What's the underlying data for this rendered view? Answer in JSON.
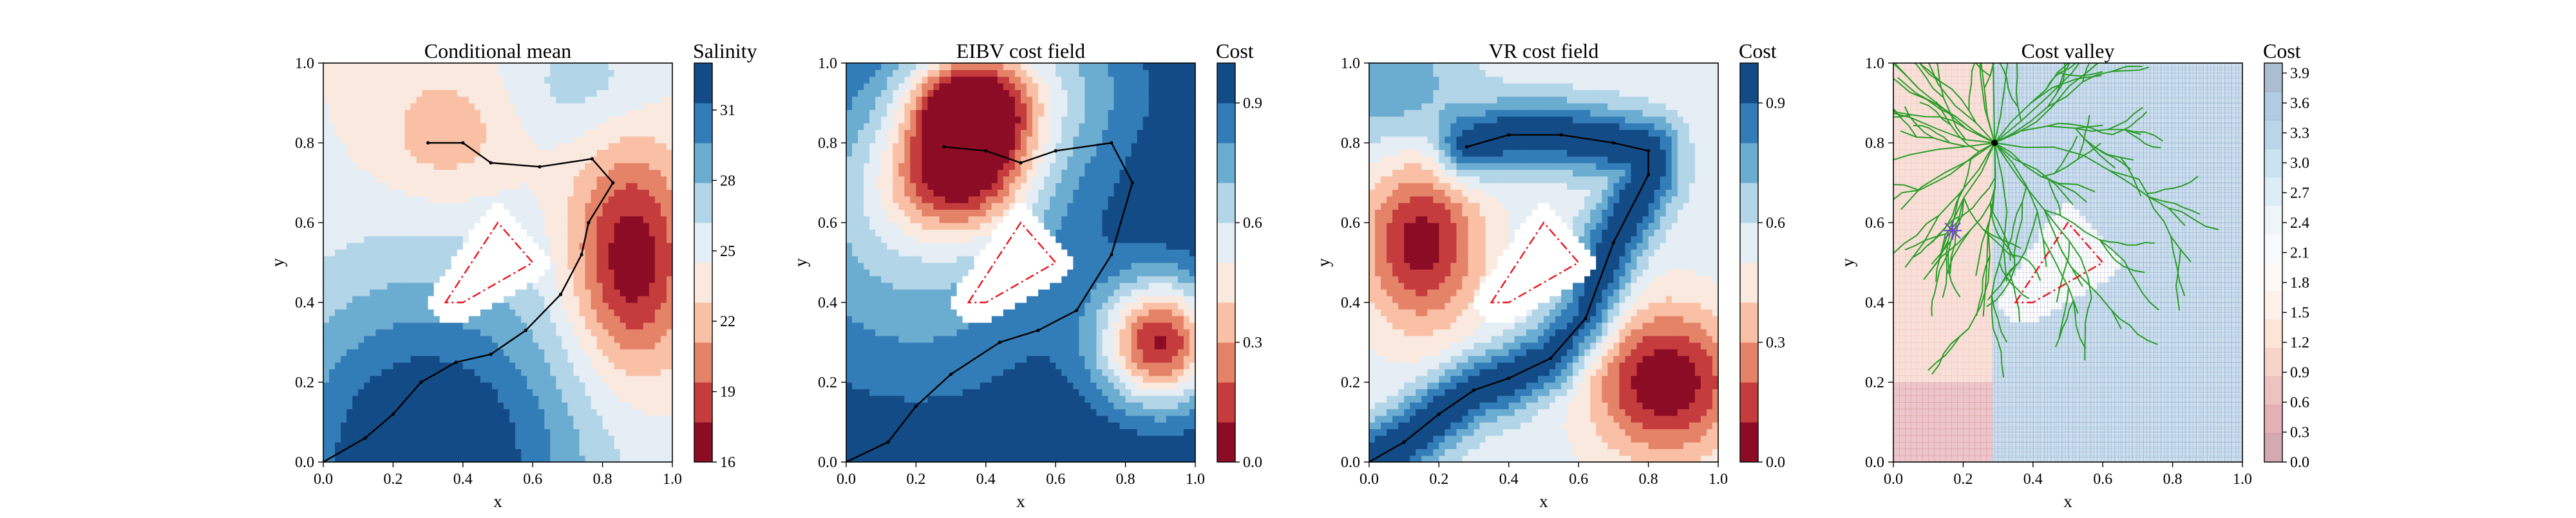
{
  "figure": {
    "background": "#ffffff"
  },
  "chart_data": [
    {
      "type": "heatmap",
      "title": "Conditional mean",
      "xlabel": "x",
      "ylabel": "y",
      "xlim": [
        0.0,
        1.0
      ],
      "ylim": [
        0.0,
        1.0
      ],
      "x_ticks": [
        "0.0",
        "0.2",
        "0.4",
        "0.6",
        "0.8",
        "1.0"
      ],
      "y_ticks": [
        "0.0",
        "0.2",
        "0.4",
        "0.6",
        "0.8",
        "1.0"
      ],
      "colormap": "RdBu",
      "colorbar": {
        "label": "Salinity",
        "range": [
          16,
          33
        ],
        "levels": 10,
        "ticks": [
          "16",
          "19",
          "22",
          "25",
          "28",
          "31"
        ],
        "tick_values": [
          16,
          19,
          22,
          25,
          28,
          31
        ]
      },
      "field": {
        "base": 24.5,
        "gradient": [
          {
            "x": 0.3,
            "y": 0.0,
            "amp": 9.5,
            "sigma": 0.32
          }
        ],
        "blobs": [
          {
            "x": 0.88,
            "y": 0.5,
            "amp": -8.5,
            "sx": 0.12,
            "sy": 0.2
          },
          {
            "x": 0.35,
            "y": 0.82,
            "amp": -3.0,
            "sx": 0.14,
            "sy": 0.12
          },
          {
            "x": 0.75,
            "y": 0.95,
            "amp": 2.5,
            "sx": 0.15,
            "sy": 0.1
          }
        ]
      },
      "obstacle": [
        [
          0.35,
          0.4
        ],
        [
          0.5,
          0.6
        ],
        [
          0.6,
          0.5
        ],
        [
          0.4,
          0.4
        ]
      ],
      "path": [
        [
          0.0,
          0.0
        ],
        [
          0.12,
          0.06
        ],
        [
          0.2,
          0.12
        ],
        [
          0.28,
          0.2
        ],
        [
          0.38,
          0.25
        ],
        [
          0.48,
          0.27
        ],
        [
          0.58,
          0.33
        ],
        [
          0.68,
          0.42
        ],
        [
          0.74,
          0.52
        ],
        [
          0.76,
          0.6
        ],
        [
          0.83,
          0.7
        ],
        [
          0.77,
          0.76
        ],
        [
          0.62,
          0.74
        ],
        [
          0.48,
          0.75
        ],
        [
          0.4,
          0.8
        ],
        [
          0.3,
          0.8
        ]
      ]
    },
    {
      "type": "heatmap",
      "title": "EIBV cost field",
      "xlabel": "x",
      "ylabel": "y",
      "xlim": [
        0.0,
        1.0
      ],
      "ylim": [
        0.0,
        1.0
      ],
      "x_ticks": [
        "0.0",
        "0.2",
        "0.4",
        "0.6",
        "0.8",
        "1.0"
      ],
      "y_ticks": [
        "0.0",
        "0.2",
        "0.4",
        "0.6",
        "0.8",
        "1.0"
      ],
      "colormap": "RdBu",
      "colorbar": {
        "label": "Cost",
        "range": [
          0.0,
          1.0
        ],
        "levels": 10,
        "ticks": [
          "0.0",
          "0.3",
          "0.6",
          "0.9"
        ],
        "tick_values": [
          0.0,
          0.3,
          0.6,
          0.9
        ]
      },
      "field": {
        "base": 1.0,
        "blobs": [
          {
            "x": 0.35,
            "y": 0.88,
            "amp": -0.9,
            "sx": 0.12,
            "sy": 0.1
          },
          {
            "x": 0.32,
            "y": 0.7,
            "amp": -0.55,
            "sx": 0.15,
            "sy": 0.1
          },
          {
            "x": 0.9,
            "y": 0.3,
            "amp": -0.9,
            "sx": 0.12,
            "sy": 0.11
          },
          {
            "x": 0.2,
            "y": 0.6,
            "amp": -0.35,
            "sx": 0.3,
            "sy": 0.28
          },
          {
            "x": 0.55,
            "y": 0.95,
            "amp": -0.3,
            "sx": 0.2,
            "sy": 0.15
          }
        ]
      },
      "obstacle": [
        [
          0.35,
          0.4
        ],
        [
          0.5,
          0.6
        ],
        [
          0.6,
          0.5
        ],
        [
          0.4,
          0.4
        ]
      ],
      "path": [
        [
          0.0,
          0.0
        ],
        [
          0.12,
          0.05
        ],
        [
          0.2,
          0.14
        ],
        [
          0.3,
          0.22
        ],
        [
          0.44,
          0.3
        ],
        [
          0.55,
          0.33
        ],
        [
          0.66,
          0.38
        ],
        [
          0.76,
          0.52
        ],
        [
          0.82,
          0.7
        ],
        [
          0.76,
          0.8
        ],
        [
          0.6,
          0.78
        ],
        [
          0.5,
          0.75
        ],
        [
          0.4,
          0.78
        ],
        [
          0.28,
          0.79
        ]
      ]
    },
    {
      "type": "heatmap",
      "title": "VR cost field",
      "xlabel": "x",
      "ylabel": "y",
      "xlim": [
        0.0,
        1.0
      ],
      "ylim": [
        0.0,
        1.0
      ],
      "x_ticks": [
        "0.0",
        "0.2",
        "0.4",
        "0.6",
        "0.8",
        "1.0"
      ],
      "y_ticks": [
        "0.0",
        "0.2",
        "0.4",
        "0.6",
        "0.8",
        "1.0"
      ],
      "colormap": "RdBu",
      "colorbar": {
        "label": "Cost",
        "range": [
          0.0,
          1.0
        ],
        "levels": 10,
        "ticks": [
          "0.0",
          "0.3",
          "0.6",
          "0.9"
        ],
        "tick_values": [
          0.0,
          0.3,
          0.6,
          0.9
        ]
      },
      "field": {
        "base": 0.55,
        "path_valley": {
          "amp": 0.45,
          "sigma": 0.06
        },
        "blobs": [
          {
            "x": 0.15,
            "y": 0.55,
            "amp": -0.5,
            "sx": 0.12,
            "sy": 0.15
          },
          {
            "x": 0.85,
            "y": 0.2,
            "amp": -0.55,
            "sx": 0.15,
            "sy": 0.13
          },
          {
            "x": 0.05,
            "y": 0.95,
            "amp": 0.25,
            "sx": 0.15,
            "sy": 0.12
          }
        ]
      },
      "obstacle": [
        [
          0.35,
          0.4
        ],
        [
          0.5,
          0.6
        ],
        [
          0.6,
          0.5
        ],
        [
          0.4,
          0.4
        ]
      ],
      "path": [
        [
          0.0,
          0.0
        ],
        [
          0.1,
          0.05
        ],
        [
          0.2,
          0.12
        ],
        [
          0.3,
          0.18
        ],
        [
          0.4,
          0.21
        ],
        [
          0.52,
          0.26
        ],
        [
          0.62,
          0.36
        ],
        [
          0.7,
          0.55
        ],
        [
          0.8,
          0.72
        ],
        [
          0.8,
          0.78
        ],
        [
          0.7,
          0.8
        ],
        [
          0.55,
          0.82
        ],
        [
          0.4,
          0.82
        ],
        [
          0.28,
          0.79
        ]
      ]
    },
    {
      "type": "heatmap",
      "title": "Cost valley",
      "xlabel": "x",
      "ylabel": "y",
      "xlim": [
        0.0,
        1.0
      ],
      "ylim": [
        0.0,
        1.0
      ],
      "x_ticks": [
        "0.0",
        "0.2",
        "0.4",
        "0.6",
        "0.8",
        "1.0"
      ],
      "y_ticks": [
        "0.0",
        "0.2",
        "0.4",
        "0.6",
        "0.8",
        "1.0"
      ],
      "colormap": "RdBu",
      "colorbar": {
        "label": "Cost",
        "range": [
          0.0,
          4.0
        ],
        "levels": 14,
        "ticks": [
          "0.0",
          "0.3",
          "0.6",
          "0.9",
          "1.2",
          "1.5",
          "1.8",
          "2.1",
          "2.4",
          "2.7",
          "3.0",
          "3.3",
          "3.6",
          "3.9"
        ],
        "tick_values": [
          0.0,
          0.3,
          0.6,
          0.9,
          1.2,
          1.5,
          1.8,
          2.1,
          2.4,
          2.7,
          3.0,
          3.3,
          3.6,
          3.9
        ],
        "alpha": 0.25
      },
      "field": {
        "split_x": 0.29,
        "left_value": 1.0,
        "right_value": 3.2,
        "left_bottom_value": 0.3
      },
      "tree_root": [
        0.29,
        0.8
      ],
      "tree_color": "#2a9d28",
      "start_marker": [
        0.17,
        0.58
      ],
      "start_marker_color": "#7b3fd6",
      "obstacle": [
        [
          0.35,
          0.4
        ],
        [
          0.5,
          0.6
        ],
        [
          0.6,
          0.5
        ],
        [
          0.4,
          0.4
        ]
      ]
    }
  ]
}
